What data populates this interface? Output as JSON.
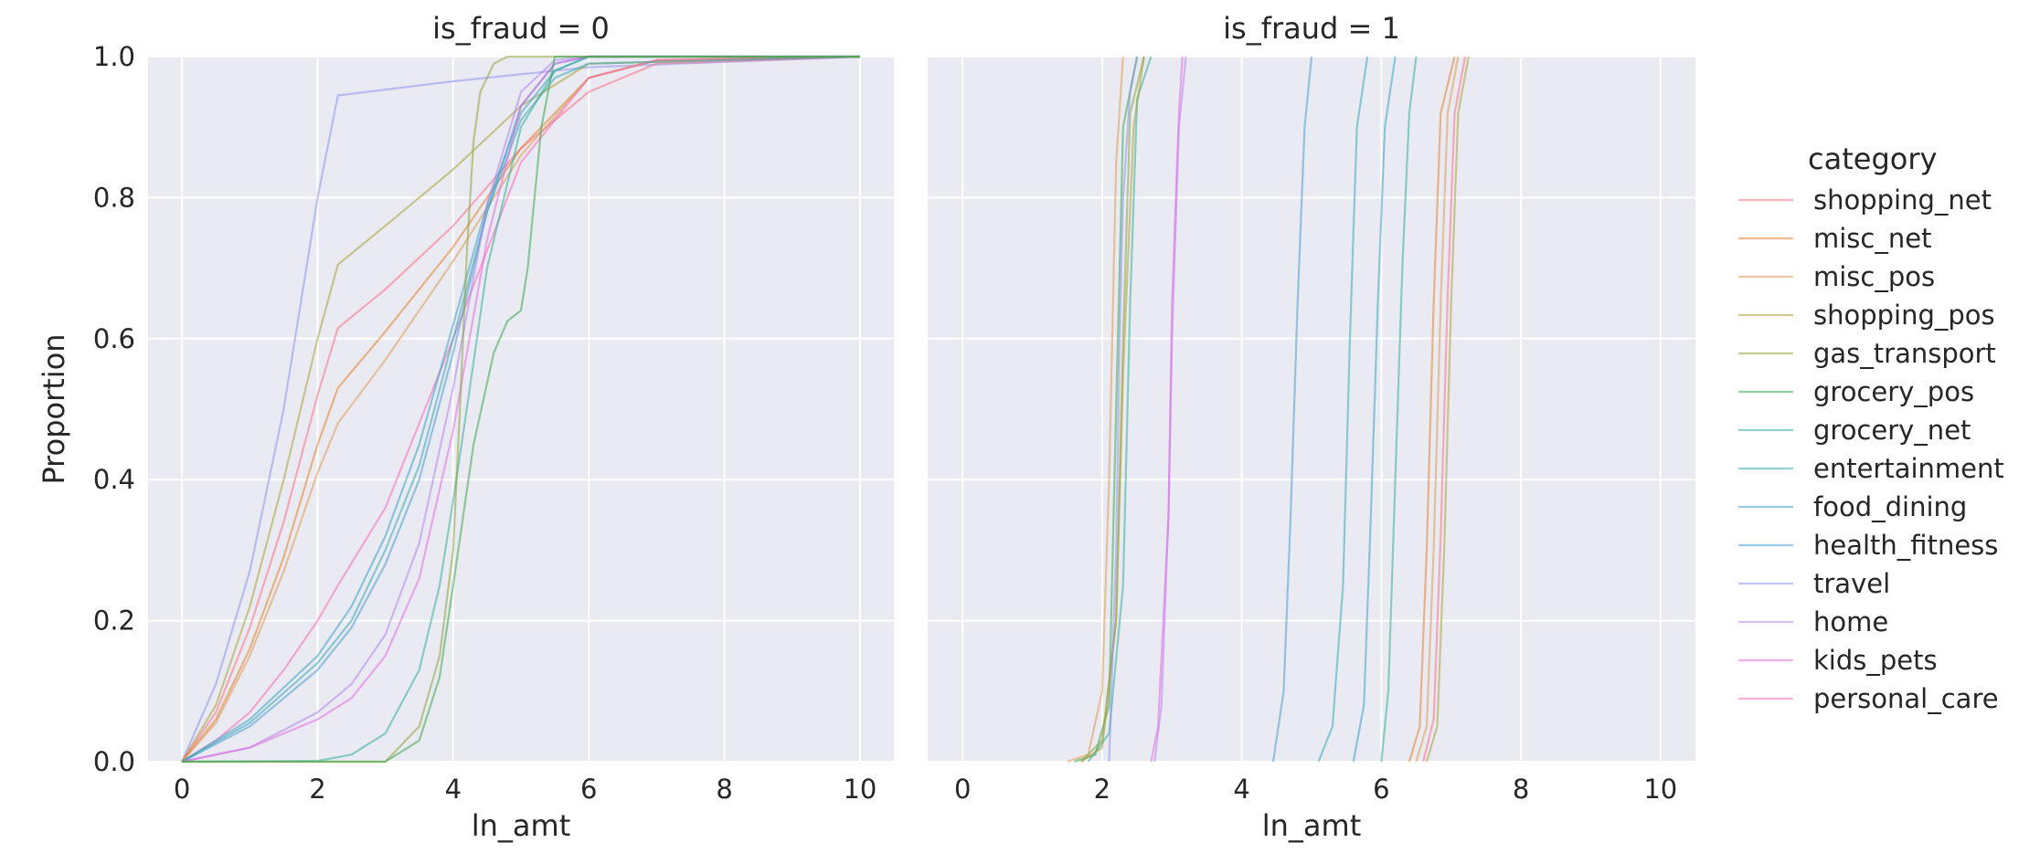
{
  "chart_data": {
    "type": "line",
    "kind": "ecdf",
    "xlabel": "ln_amt",
    "ylabel": "Proportion",
    "xlim": [
      -0.5,
      10.5
    ],
    "ylim": [
      0,
      1
    ],
    "x_ticks": [
      "0",
      "2",
      "4",
      "6",
      "8",
      "10"
    ],
    "y_ticks": [
      "0.0",
      "0.2",
      "0.4",
      "0.6",
      "0.8",
      "1.0"
    ],
    "grid": true,
    "legend": {
      "title": "category",
      "placement": "outside-right",
      "entries": [
        {
          "name": "shopping_net",
          "color": "#f77189"
        },
        {
          "name": "misc_net",
          "color": "#e1812c"
        },
        {
          "name": "misc_pos",
          "color": "#dc9a56"
        },
        {
          "name": "shopping_pos",
          "color": "#a8a33a"
        },
        {
          "name": "gas_transport",
          "color": "#8da43a"
        },
        {
          "name": "grocery_pos",
          "color": "#3aa84f"
        },
        {
          "name": "grocery_net",
          "color": "#36ad9a"
        },
        {
          "name": "entertainment",
          "color": "#38aab5"
        },
        {
          "name": "food_dining",
          "color": "#3ba3c4"
        },
        {
          "name": "health_fitness",
          "color": "#4a9bd3"
        },
        {
          "name": "travel",
          "color": "#8c93ee"
        },
        {
          "name": "home",
          "color": "#b584ee"
        },
        {
          "name": "kids_pets",
          "color": "#e36be3"
        },
        {
          "name": "personal_care",
          "color": "#f56bb9"
        }
      ]
    },
    "panels": [
      {
        "title": "is_fraud = 0",
        "series": [
          {
            "name": "travel",
            "x": [
              0,
              0.5,
              1.0,
              1.5,
              2.0,
              2.3,
              4.0,
              6.0,
              10.0
            ],
            "y": [
              0,
              0.11,
              0.27,
              0.5,
              0.8,
              0.945,
              0.965,
              0.985,
              1.0
            ]
          },
          {
            "name": "shopping_pos",
            "x": [
              0,
              0.5,
              1.0,
              1.5,
              2.0,
              2.3,
              3.0,
              4.0,
              5.0,
              6.0,
              10.0
            ],
            "y": [
              0,
              0.08,
              0.22,
              0.4,
              0.6,
              0.705,
              0.76,
              0.84,
              0.93,
              0.99,
              1.0
            ]
          },
          {
            "name": "shopping_net",
            "x": [
              0,
              0.5,
              1.0,
              1.5,
              2.0,
              2.3,
              3.0,
              4.0,
              5.0,
              6.0,
              7.0,
              10.0
            ],
            "y": [
              0,
              0.07,
              0.19,
              0.34,
              0.52,
              0.615,
              0.67,
              0.76,
              0.87,
              0.95,
              0.99,
              1.0
            ]
          },
          {
            "name": "misc_net",
            "x": [
              0,
              0.5,
              1.0,
              1.5,
              2.0,
              2.3,
              3.0,
              4.0,
              5.0,
              6.0,
              7.0,
              10.0
            ],
            "y": [
              0,
              0.06,
              0.16,
              0.29,
              0.45,
              0.53,
              0.61,
              0.73,
              0.87,
              0.97,
              0.995,
              1.0
            ]
          },
          {
            "name": "misc_pos",
            "x": [
              0,
              0.5,
              1.0,
              1.5,
              2.0,
              2.3,
              3.0,
              4.0,
              5.0,
              6.0,
              7.0,
              10.0
            ],
            "y": [
              0,
              0.055,
              0.15,
              0.27,
              0.41,
              0.48,
              0.57,
              0.71,
              0.86,
              0.97,
              0.995,
              1.0
            ]
          },
          {
            "name": "personal_care",
            "x": [
              0,
              0.5,
              1.0,
              1.5,
              2.0,
              2.3,
              3.0,
              4.0,
              5.0,
              6.0,
              7.0,
              10.0
            ],
            "y": [
              0,
              0.03,
              0.07,
              0.13,
              0.2,
              0.25,
              0.36,
              0.6,
              0.85,
              0.97,
              0.995,
              1.0
            ]
          },
          {
            "name": "food_dining",
            "x": [
              0,
              1.0,
              2.0,
              2.5,
              3.0,
              3.5,
              4.0,
              4.5,
              5.0,
              5.5,
              6.0,
              10.0
            ],
            "y": [
              0,
              0.06,
              0.15,
              0.22,
              0.32,
              0.45,
              0.62,
              0.79,
              0.92,
              0.98,
              1.0,
              1.0
            ]
          },
          {
            "name": "health_fitness",
            "x": [
              0,
              1.0,
              2.0,
              2.5,
              3.0,
              3.5,
              4.0,
              4.5,
              5.0,
              5.5,
              6.0,
              10.0
            ],
            "y": [
              0,
              0.05,
              0.13,
              0.19,
              0.28,
              0.4,
              0.58,
              0.78,
              0.93,
              0.99,
              1.0,
              1.0
            ]
          },
          {
            "name": "entertainment",
            "x": [
              0,
              1.0,
              2.0,
              2.5,
              3.0,
              3.5,
              4.0,
              4.5,
              5.0,
              5.5,
              6.0,
              10.0
            ],
            "y": [
              0,
              0.055,
              0.14,
              0.2,
              0.3,
              0.42,
              0.6,
              0.78,
              0.91,
              0.97,
              0.99,
              1.0
            ]
          },
          {
            "name": "home",
            "x": [
              0,
              1.0,
              2.0,
              2.5,
              3.0,
              3.5,
              4.0,
              4.5,
              5.0,
              5.5,
              6.0,
              10.0
            ],
            "y": [
              0,
              0.02,
              0.07,
              0.11,
              0.18,
              0.31,
              0.53,
              0.79,
              0.95,
              0.995,
              1.0,
              1.0
            ]
          },
          {
            "name": "kids_pets",
            "x": [
              0,
              1.0,
              2.0,
              2.5,
              3.0,
              3.5,
              4.0,
              4.5,
              5.0,
              5.5,
              6.0,
              10.0
            ],
            "y": [
              0,
              0.02,
              0.06,
              0.09,
              0.15,
              0.26,
              0.47,
              0.74,
              0.93,
              0.99,
              1.0,
              1.0
            ]
          },
          {
            "name": "grocery_net",
            "x": [
              0,
              2.0,
              2.5,
              3.0,
              3.5,
              3.8,
              4.0,
              4.2,
              4.5,
              5.0,
              5.5,
              6.0,
              10.0
            ],
            "y": [
              0,
              0.001,
              0.01,
              0.04,
              0.13,
              0.25,
              0.37,
              0.5,
              0.7,
              0.9,
              0.98,
              1.0,
              1.0
            ]
          },
          {
            "name": "gas_transport",
            "x": [
              0,
              3.0,
              3.5,
              3.8,
              4.0,
              4.1,
              4.2,
              4.3,
              4.4,
              4.6,
              4.8,
              5.0,
              10.0
            ],
            "y": [
              0,
              0.0,
              0.05,
              0.15,
              0.3,
              0.5,
              0.72,
              0.88,
              0.95,
              0.99,
              1.0,
              1.0,
              1.0
            ]
          },
          {
            "name": "grocery_pos",
            "x": [
              0,
              3.0,
              3.5,
              3.8,
              4.0,
              4.3,
              4.6,
              4.8,
              5.0,
              5.1,
              5.3,
              5.5,
              6.0,
              10.0
            ],
            "y": [
              0,
              0.0,
              0.03,
              0.12,
              0.25,
              0.45,
              0.58,
              0.625,
              0.64,
              0.7,
              0.9,
              1.0,
              1.0,
              1.0
            ]
          }
        ]
      },
      {
        "title": "is_fraud = 1",
        "series": [
          {
            "name": "misc_pos",
            "x": [
              1.5,
              1.8,
              2.0,
              2.1,
              2.2,
              2.3
            ],
            "y": [
              0,
              0.01,
              0.1,
              0.4,
              0.85,
              1.0
            ]
          },
          {
            "name": "grocery_pos",
            "x": [
              1.6,
              1.9,
              2.1,
              2.2,
              2.3,
              2.5
            ],
            "y": [
              0,
              0.01,
              0.08,
              0.5,
              0.9,
              1.0
            ]
          },
          {
            "name": "gas_transport",
            "x": [
              1.7,
              2.0,
              2.2,
              2.3,
              2.4,
              2.6
            ],
            "y": [
              0,
              0.03,
              0.2,
              0.6,
              0.92,
              1.0
            ]
          },
          {
            "name": "grocery_net",
            "x": [
              1.8,
              2.1,
              2.3,
              2.4,
              2.5,
              2.7
            ],
            "y": [
              0,
              0.04,
              0.25,
              0.65,
              0.94,
              1.0
            ]
          },
          {
            "name": "shopping_pos",
            "x": [
              1.7,
              2.0,
              2.2,
              2.3,
              2.45,
              2.6
            ],
            "y": [
              0,
              0.02,
              0.2,
              0.55,
              0.9,
              1.0
            ]
          },
          {
            "name": "travel",
            "x": [
              2.1,
              2.2,
              2.25,
              2.3,
              2.4,
              2.5
            ],
            "y": [
              0,
              0.3,
              0.6,
              0.8,
              0.95,
              1.0
            ]
          },
          {
            "name": "home",
            "x": [
              2.75,
              2.85,
              2.95,
              3.0,
              3.1,
              3.2
            ],
            "y": [
              0,
              0.08,
              0.35,
              0.6,
              0.9,
              1.0
            ]
          },
          {
            "name": "kids_pets",
            "x": [
              2.7,
              2.8,
              2.95,
              3.0,
              3.1,
              3.15
            ],
            "y": [
              0,
              0.05,
              0.35,
              0.65,
              0.92,
              1.0
            ]
          },
          {
            "name": "health_fitness",
            "x": [
              4.45,
              4.6,
              4.7,
              4.8,
              4.9,
              5.0
            ],
            "y": [
              0,
              0.1,
              0.35,
              0.65,
              0.9,
              1.0
            ]
          },
          {
            "name": "entertainment",
            "x": [
              5.1,
              5.3,
              5.45,
              5.55,
              5.65,
              5.8
            ],
            "y": [
              0,
              0.05,
              0.25,
              0.6,
              0.9,
              1.0
            ]
          },
          {
            "name": "food_dining",
            "x": [
              5.6,
              5.75,
              5.85,
              5.95,
              6.05,
              6.2
            ],
            "y": [
              0,
              0.08,
              0.35,
              0.65,
              0.9,
              1.0
            ]
          },
          {
            "name": "grocery_net",
            "x": [
              6.0,
              6.1,
              6.2,
              6.3,
              6.4,
              6.5
            ],
            "y": [
              0,
              0.1,
              0.4,
              0.7,
              0.92,
              1.0
            ]
          },
          {
            "name": "misc_net",
            "x": [
              6.4,
              6.55,
              6.65,
              6.75,
              6.85,
              7.05
            ],
            "y": [
              0,
              0.05,
              0.3,
              0.65,
              0.92,
              1.0
            ]
          },
          {
            "name": "misc_pos",
            "x": [
              6.5,
              6.65,
              6.75,
              6.85,
              6.95,
              7.1
            ],
            "y": [
              0,
              0.05,
              0.3,
              0.65,
              0.92,
              1.0
            ]
          },
          {
            "name": "shopping_net",
            "x": [
              6.6,
              6.75,
              6.85,
              6.95,
              7.05,
              7.2
            ],
            "y": [
              0,
              0.06,
              0.32,
              0.66,
              0.92,
              1.0
            ]
          },
          {
            "name": "shopping_pos",
            "x": [
              6.65,
              6.8,
              6.9,
              7.0,
              7.1,
              7.25
            ],
            "y": [
              0,
              0.05,
              0.3,
              0.65,
              0.92,
              1.0
            ]
          }
        ]
      }
    ]
  }
}
